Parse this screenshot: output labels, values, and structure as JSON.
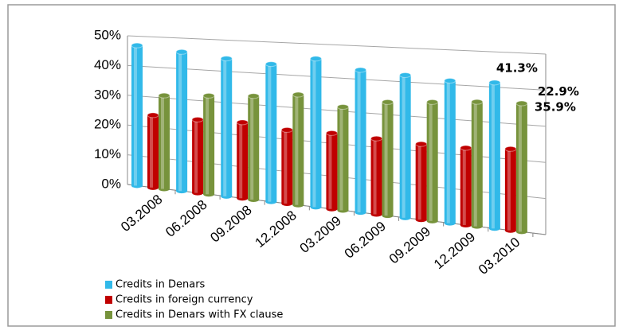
{
  "chart_data": {
    "type": "bar3d",
    "categories": [
      "03.2008",
      "06.2008",
      "09.2008",
      "12.2008",
      "03.2009",
      "06.2009",
      "09.2009",
      "12.2009",
      "03.2010"
    ],
    "series": [
      {
        "name": "Credits in Denars",
        "color": "#31b9e9",
        "values": [
          46.9,
          45.5,
          44.1,
          43.1,
          45.5,
          42.8,
          42.0,
          41.1,
          41.3
        ],
        "value_labels": [
          null,
          null,
          null,
          null,
          null,
          null,
          null,
          null,
          "41.3%"
        ]
      },
      {
        "name": "Credits in foreign currency",
        "color": "#c00000",
        "values": [
          24.0,
          23.8,
          24.1,
          22.9,
          23.1,
          22.6,
          22.1,
          22.1,
          22.9
        ],
        "value_labels": [
          null,
          null,
          null,
          null,
          null,
          null,
          null,
          null,
          "22.9%"
        ]
      },
      {
        "name": "Credits in Denars with FX clause",
        "color": "#77933c",
        "values": [
          30.8,
          31.8,
          32.7,
          34.1,
          31.3,
          33.7,
          34.6,
          35.5,
          35.9
        ],
        "value_labels": [
          null,
          null,
          null,
          null,
          null,
          null,
          null,
          null,
          "35.9%"
        ]
      }
    ],
    "ylim": [
      0,
      50
    ],
    "yticks": [
      {
        "value": 0,
        "label": "0%"
      },
      {
        "value": 10,
        "label": "10%"
      },
      {
        "value": 20,
        "label": "20%"
      },
      {
        "value": 30,
        "label": "30%"
      },
      {
        "value": 40,
        "label": "40%"
      },
      {
        "value": 50,
        "label": "50%"
      }
    ],
    "grid": true
  }
}
